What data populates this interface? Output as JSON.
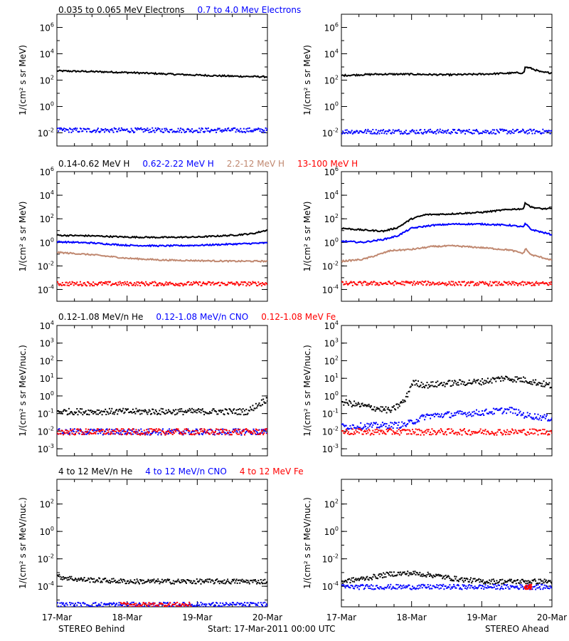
{
  "footer": {
    "left": "STEREO Behind",
    "center": "Start: 17-Mar-2011 00:00 UTC",
    "right": "STEREO Ahead"
  },
  "x_axis": {
    "ticks": [
      "17-Mar",
      "18-Mar",
      "19-Mar",
      "20-Mar"
    ],
    "range_days": [
      0,
      3
    ]
  },
  "colors": {
    "black": "#000000",
    "blue": "#0000ff",
    "tan": "#c08870",
    "red": "#ff0000"
  },
  "rows": [
    {
      "id": "electrons",
      "ylabel": "1/(cm² s sr MeV)",
      "ylog": [
        -3,
        7
      ],
      "ticks": [
        {
          "e": -2,
          "base": "10",
          "exp": "-2"
        },
        {
          "e": 0,
          "base": "10",
          "exp": "0"
        },
        {
          "e": 2,
          "base": "10",
          "exp": "2"
        },
        {
          "e": 4,
          "base": "10",
          "exp": "4"
        },
        {
          "e": 6,
          "base": "10",
          "exp": "6"
        }
      ],
      "labels": [
        {
          "text": "0.035 to 0.065 MeV Electrons",
          "color": "#000000"
        },
        {
          "text": "0.7 to 4.0 Mev Electrons",
          "color": "#0000ff"
        }
      ]
    },
    {
      "id": "protons",
      "ylabel": "1/(cm² s sr MeV)",
      "ylog": [
        -5,
        6
      ],
      "ticks": [
        {
          "e": -4,
          "base": "10",
          "exp": "-4"
        },
        {
          "e": -2,
          "base": "10",
          "exp": "-2"
        },
        {
          "e": 0,
          "base": "10",
          "exp": "0"
        },
        {
          "e": 2,
          "base": "10",
          "exp": "2"
        },
        {
          "e": 4,
          "base": "10",
          "exp": "4"
        },
        {
          "e": 6,
          "base": "10",
          "exp": "6"
        }
      ],
      "labels": [
        {
          "text": "0.14-0.62 MeV H",
          "color": "#000000"
        },
        {
          "text": "0.62-2.22 MeV H",
          "color": "#0000ff"
        },
        {
          "text": "2.2-12 MeV H",
          "color": "#c08870"
        },
        {
          "text": "13-100 MeV H",
          "color": "#ff0000"
        }
      ]
    },
    {
      "id": "low-energy-ions",
      "ylabel": "1/(cm² s sr MeV/nuc.)",
      "ylog": [
        -3.4,
        4
      ],
      "ticks": [
        {
          "e": -3,
          "base": "10",
          "exp": "-3"
        },
        {
          "e": -2,
          "base": "10",
          "exp": "-2"
        },
        {
          "e": -1,
          "base": "10",
          "exp": "-1"
        },
        {
          "e": 0,
          "base": "10",
          "exp": "0"
        },
        {
          "e": 1,
          "base": "10",
          "exp": "1"
        },
        {
          "e": 2,
          "base": "10",
          "exp": "2"
        },
        {
          "e": 3,
          "base": "10",
          "exp": "3"
        },
        {
          "e": 4,
          "base": "10",
          "exp": "4"
        }
      ],
      "labels": [
        {
          "text": "0.12-1.08 MeV/n He",
          "color": "#000000"
        },
        {
          "text": "0.12-1.08 MeV/n CNO",
          "color": "#0000ff"
        },
        {
          "text": "0.12-1.08 MeV Fe",
          "color": "#ff0000"
        }
      ]
    },
    {
      "id": "high-energy-ions",
      "ylabel": "1/(cm² s sr MeV/nuc.)",
      "ylog": [
        -5.5,
        3.8
      ],
      "ticks": [
        {
          "e": -4,
          "base": "10",
          "exp": "-4"
        },
        {
          "e": -2,
          "base": "10",
          "exp": "-2"
        },
        {
          "e": 0,
          "base": "10",
          "exp": "0"
        },
        {
          "e": 2,
          "base": "10",
          "exp": "2"
        }
      ],
      "labels": [
        {
          "text": "4 to 12 MeV/n He",
          "color": "#000000"
        },
        {
          "text": "4 to 12 MeV/n CNO",
          "color": "#0000ff"
        },
        {
          "text": "4 to 12 MeV Fe",
          "color": "#ff0000"
        }
      ]
    }
  ],
  "chart_data": [
    {
      "type": "line",
      "spacecraft": "STEREO Behind",
      "row": "electrons",
      "xunit": "days since 17-Mar",
      "ylog": true,
      "series": [
        {
          "name": "0.035 to 0.065 MeV Electrons",
          "color": "#000000",
          "style": "line",
          "points": [
            [
              0,
              2.7
            ],
            [
              0.5,
              2.65
            ],
            [
              1,
              2.58
            ],
            [
              1.5,
              2.48
            ],
            [
              2,
              2.38
            ],
            [
              2.5,
              2.3
            ],
            [
              3,
              2.25
            ]
          ]
        },
        {
          "name": "0.7 to 4.0 Mev Electrons",
          "color": "#0000ff",
          "style": "dots",
          "points": [
            [
              0,
              -1.75
            ],
            [
              1,
              -1.75
            ],
            [
              2,
              -1.75
            ],
            [
              3,
              -1.75
            ]
          ]
        }
      ]
    },
    {
      "type": "line",
      "spacecraft": "STEREO Ahead",
      "row": "electrons",
      "xunit": "days since 17-Mar",
      "ylog": true,
      "series": [
        {
          "name": "0.035 to 0.065 MeV Electrons",
          "color": "#000000",
          "style": "line",
          "points": [
            [
              0,
              2.35
            ],
            [
              0.5,
              2.45
            ],
            [
              1,
              2.45
            ],
            [
              1.5,
              2.4
            ],
            [
              2,
              2.45
            ],
            [
              2.5,
              2.55
            ],
            [
              2.6,
              2.55
            ],
            [
              2.62,
              3.0
            ],
            [
              2.7,
              2.9
            ],
            [
              2.85,
              2.6
            ],
            [
              3,
              2.55
            ]
          ]
        },
        {
          "name": "0.7 to 4.0 Mev Electrons",
          "color": "#0000ff",
          "style": "dots",
          "points": [
            [
              0,
              -1.85
            ],
            [
              1,
              -1.85
            ],
            [
              2,
              -1.85
            ],
            [
              3,
              -1.85
            ]
          ]
        }
      ]
    },
    {
      "type": "line",
      "spacecraft": "STEREO Behind",
      "row": "protons",
      "xunit": "days since 17-Mar",
      "ylog": true,
      "series": [
        {
          "name": "0.14-0.62 MeV H",
          "color": "#000000",
          "style": "line",
          "points": [
            [
              0,
              0.6
            ],
            [
              0.5,
              0.55
            ],
            [
              1,
              0.45
            ],
            [
              1.5,
              0.42
            ],
            [
              2,
              0.45
            ],
            [
              2.5,
              0.6
            ],
            [
              2.8,
              0.75
            ],
            [
              3,
              1.05
            ]
          ]
        },
        {
          "name": "0.62-2.22 MeV H",
          "color": "#0000ff",
          "style": "line",
          "points": [
            [
              0,
              0.05
            ],
            [
              0.5,
              -0.05
            ],
            [
              1,
              -0.25
            ],
            [
              1.5,
              -0.3
            ],
            [
              2,
              -0.25
            ],
            [
              2.5,
              -0.15
            ],
            [
              3,
              -0.05
            ]
          ]
        },
        {
          "name": "2.2-12 MeV H",
          "color": "#c08870",
          "style": "line",
          "points": [
            [
              0,
              -0.85
            ],
            [
              0.5,
              -1.05
            ],
            [
              1,
              -1.35
            ],
            [
              1.5,
              -1.5
            ],
            [
              2,
              -1.55
            ],
            [
              2.5,
              -1.6
            ],
            [
              3,
              -1.6
            ]
          ]
        },
        {
          "name": "13-100 MeV H",
          "color": "#ff0000",
          "style": "dots",
          "points": [
            [
              0,
              -3.45
            ],
            [
              1,
              -3.45
            ],
            [
              2,
              -3.45
            ],
            [
              3,
              -3.45
            ]
          ]
        }
      ]
    },
    {
      "type": "line",
      "spacecraft": "STEREO Ahead",
      "row": "protons",
      "xunit": "days since 17-Mar",
      "ylog": true,
      "series": [
        {
          "name": "0.14-0.62 MeV H",
          "color": "#000000",
          "style": "line",
          "points": [
            [
              0,
              1.2
            ],
            [
              0.3,
              1.05
            ],
            [
              0.6,
              0.95
            ],
            [
              0.8,
              1.25
            ],
            [
              1.0,
              2.0
            ],
            [
              1.2,
              2.35
            ],
            [
              1.5,
              2.4
            ],
            [
              2.0,
              2.55
            ],
            [
              2.4,
              2.8
            ],
            [
              2.6,
              2.85
            ],
            [
              2.62,
              3.4
            ],
            [
              2.7,
              3.0
            ],
            [
              2.85,
              2.85
            ],
            [
              3.0,
              2.85
            ]
          ]
        },
        {
          "name": "0.62-2.22 MeV H",
          "color": "#0000ff",
          "style": "line",
          "points": [
            [
              0,
              0.1
            ],
            [
              0.3,
              0.0
            ],
            [
              0.6,
              0.25
            ],
            [
              0.8,
              0.55
            ],
            [
              1.0,
              1.2
            ],
            [
              1.3,
              1.45
            ],
            [
              1.6,
              1.55
            ],
            [
              2.0,
              1.55
            ],
            [
              2.4,
              1.45
            ],
            [
              2.6,
              1.3
            ],
            [
              2.62,
              1.6
            ],
            [
              2.7,
              1.1
            ],
            [
              3.0,
              0.65
            ]
          ]
        },
        {
          "name": "2.2-12 MeV H",
          "color": "#c08870",
          "style": "line",
          "points": [
            [
              0,
              -1.6
            ],
            [
              0.3,
              -1.45
            ],
            [
              0.5,
              -1.1
            ],
            [
              0.7,
              -0.7
            ],
            [
              1.0,
              -0.6
            ],
            [
              1.3,
              -0.35
            ],
            [
              1.6,
              -0.3
            ],
            [
              2.0,
              -0.45
            ],
            [
              2.4,
              -0.65
            ],
            [
              2.6,
              -0.95
            ],
            [
              2.62,
              -0.5
            ],
            [
              2.7,
              -1.05
            ],
            [
              3.0,
              -1.5
            ]
          ]
        },
        {
          "name": "13-100 MeV H",
          "color": "#ff0000",
          "style": "dots",
          "points": [
            [
              0,
              -3.45
            ],
            [
              1,
              -3.4
            ],
            [
              2,
              -3.45
            ],
            [
              3,
              -3.45
            ]
          ]
        }
      ]
    },
    {
      "type": "scatter",
      "spacecraft": "STEREO Behind",
      "row": "low-energy-ions",
      "xunit": "days since 17-Mar",
      "ylog": true,
      "series": [
        {
          "name": "0.12-1.08 MeV/n He",
          "color": "#000000",
          "style": "dots",
          "points": [
            [
              0,
              -0.85
            ],
            [
              1,
              -0.85
            ],
            [
              2,
              -0.85
            ],
            [
              2.7,
              -0.85
            ],
            [
              3,
              -0.1
            ]
          ]
        },
        {
          "name": "0.12-1.08 MeV/n CNO",
          "color": "#0000ff",
          "style": "dots",
          "points": [
            [
              0,
              -2.0
            ],
            [
              1,
              -2.0
            ],
            [
              2,
              -2.0
            ],
            [
              3,
              -2.0
            ]
          ]
        },
        {
          "name": "0.12-1.08 MeV Fe",
          "color": "#ff0000",
          "style": "dots",
          "points": [
            [
              0,
              -2.0
            ],
            [
              1,
              -2.0
            ],
            [
              2,
              -2.0
            ],
            [
              3,
              -2.0
            ]
          ]
        }
      ]
    },
    {
      "type": "scatter",
      "spacecraft": "STEREO Ahead",
      "row": "low-energy-ions",
      "xunit": "days since 17-Mar",
      "ylog": true,
      "series": [
        {
          "name": "0.12-1.08 MeV/n He",
          "color": "#000000",
          "style": "dots",
          "points": [
            [
              0,
              -0.3
            ],
            [
              0.4,
              -0.6
            ],
            [
              0.7,
              -0.8
            ],
            [
              0.9,
              -0.2
            ],
            [
              1.0,
              0.8
            ],
            [
              1.2,
              0.65
            ],
            [
              1.5,
              0.75
            ],
            [
              2.0,
              0.85
            ],
            [
              2.3,
              1.05
            ],
            [
              2.6,
              0.95
            ],
            [
              3.0,
              0.6
            ]
          ]
        },
        {
          "name": "0.12-1.08 MeV/n CNO",
          "color": "#0000ff",
          "style": "dots",
          "points": [
            [
              0,
              -1.7
            ],
            [
              0.9,
              -1.6
            ],
            [
              1.2,
              -1.1
            ],
            [
              1.6,
              -1.0
            ],
            [
              2.0,
              -0.9
            ],
            [
              2.4,
              -0.75
            ],
            [
              2.6,
              -1.05
            ],
            [
              3.0,
              -1.25
            ]
          ]
        },
        {
          "name": "0.12-1.08 MeV Fe",
          "color": "#ff0000",
          "style": "dots",
          "points": [
            [
              0,
              -2.0
            ],
            [
              1,
              -2.0
            ],
            [
              2,
              -2.0
            ],
            [
              3,
              -2.0
            ]
          ]
        }
      ]
    },
    {
      "type": "scatter",
      "spacecraft": "STEREO Behind",
      "row": "high-energy-ions",
      "xunit": "days since 17-Mar",
      "ylog": true,
      "series": [
        {
          "name": "4 to 12 MeV/n He",
          "color": "#000000",
          "style": "dots",
          "points": [
            [
              0,
              -3.25
            ],
            [
              0.3,
              -3.45
            ],
            [
              1,
              -3.6
            ],
            [
              2,
              -3.6
            ],
            [
              3,
              -3.6
            ]
          ]
        },
        {
          "name": "4 to 12 MeV/n CNO",
          "color": "#0000ff",
          "style": "dots",
          "points": [
            [
              0,
              -5.3
            ],
            [
              1,
              -5.3
            ],
            [
              2,
              -5.3
            ],
            [
              3,
              -5.3
            ]
          ]
        },
        {
          "name": "4 to 12 MeV Fe",
          "color": "#ff0000",
          "style": "dots",
          "points": [
            [
              0.9,
              -5.3
            ],
            [
              1.9,
              -5.3
            ]
          ]
        }
      ]
    },
    {
      "type": "scatter",
      "spacecraft": "STEREO Ahead",
      "row": "high-energy-ions",
      "xunit": "days since 17-Mar",
      "ylog": true,
      "series": [
        {
          "name": "4 to 12 MeV/n He",
          "color": "#000000",
          "style": "dots",
          "points": [
            [
              0,
              -3.6
            ],
            [
              0.3,
              -3.4
            ],
            [
              0.7,
              -3.05
            ],
            [
              1.0,
              -3.0
            ],
            [
              1.3,
              -3.15
            ],
            [
              1.6,
              -3.4
            ],
            [
              2.0,
              -3.6
            ],
            [
              3.0,
              -3.6
            ]
          ]
        },
        {
          "name": "4 to 12 MeV/n CNO",
          "color": "#0000ff",
          "style": "dots",
          "points": [
            [
              0,
              -4.0
            ],
            [
              1,
              -4.0
            ],
            [
              2,
              -4.0
            ],
            [
              3,
              -4.0
            ]
          ]
        },
        {
          "name": "4 to 12 MeV Fe",
          "color": "#ff0000",
          "style": "dots",
          "points": [
            [
              2.6,
              -4.0
            ],
            [
              2.7,
              -4.0
            ]
          ]
        }
      ]
    }
  ]
}
